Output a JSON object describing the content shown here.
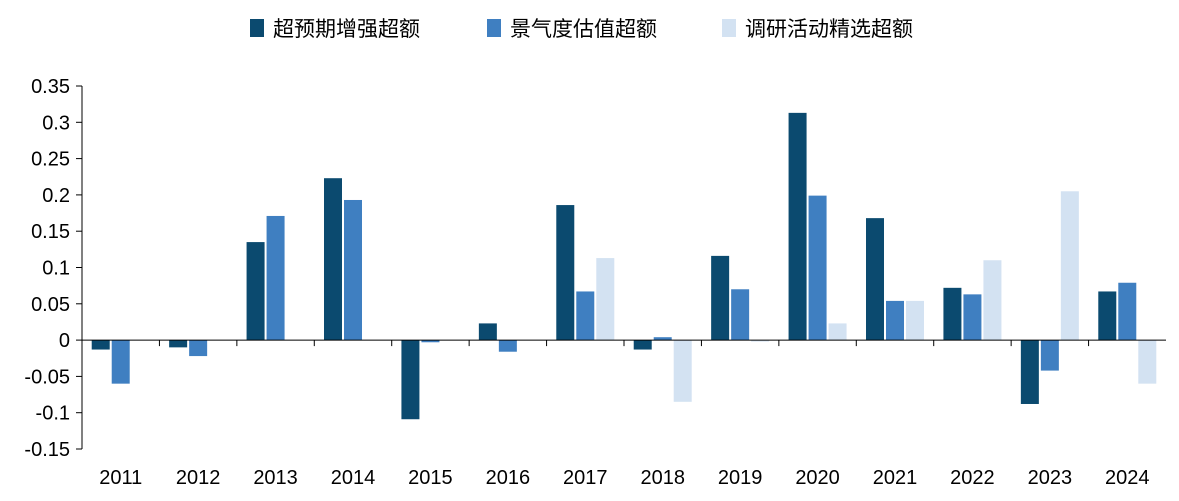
{
  "chart_data": {
    "type": "bar",
    "title": "",
    "xlabel": "",
    "ylabel": "",
    "categories": [
      "2011",
      "2012",
      "2013",
      "2014",
      "2015",
      "2016",
      "2017",
      "2018",
      "2019",
      "2020",
      "2021",
      "2022",
      "2023",
      "2024"
    ],
    "series": [
      {
        "name": "超预期增强超额",
        "color": "#0b4a6f",
        "values": [
          -0.013,
          -0.01,
          0.135,
          0.223,
          -0.109,
          0.023,
          0.186,
          -0.013,
          0.116,
          0.313,
          0.168,
          0.072,
          -0.088,
          0.067
        ]
      },
      {
        "name": "景气度估值超额",
        "color": "#3f7fc1",
        "values": [
          -0.06,
          -0.022,
          0.171,
          0.193,
          -0.003,
          -0.016,
          0.067,
          0.004,
          0.07,
          0.199,
          0.054,
          0.063,
          -0.042,
          0.079
        ]
      },
      {
        "name": "调研活动精选超额",
        "color": "#d3e2f2",
        "values": [
          0.0,
          0.0,
          0.0,
          0.0,
          0.0,
          0.0,
          0.113,
          -0.085,
          -0.002,
          0.023,
          0.054,
          0.11,
          0.205,
          -0.06
        ]
      }
    ],
    "ylim": [
      -0.15,
      0.35
    ],
    "yticks": [
      -0.15,
      -0.1,
      -0.05,
      0,
      0.05,
      0.1,
      0.15,
      0.2,
      0.25,
      0.3,
      0.35
    ],
    "ytick_labels": [
      "-0.15",
      "-0.1",
      "-0.05",
      "0",
      "0.05",
      "0.1",
      "0.15",
      "0.2",
      "0.25",
      "0.3",
      "0.35"
    ],
    "grid": false,
    "legend_position": "top-center"
  }
}
